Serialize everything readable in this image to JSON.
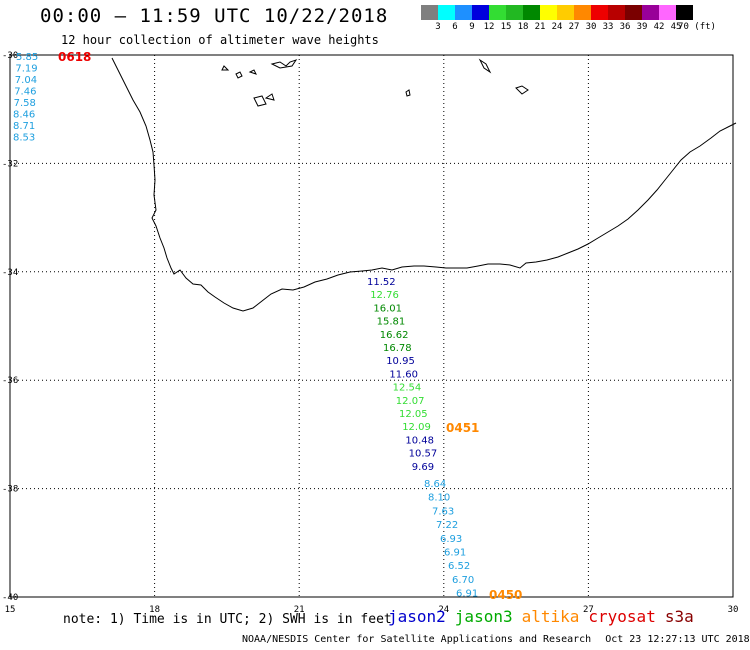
{
  "title": "00:00 – 11:59 UTC 10/22/2018",
  "subtitle": "12 hour collection of altimeter wave heights",
  "colorbar": {
    "colors": [
      "#7f7f7f",
      "#00ffff",
      "#1e90ff",
      "#0000dd",
      "#33dd33",
      "#22b822",
      "#008800",
      "#ffff00",
      "#ffcc00",
      "#ff8800",
      "#ee0000",
      "#b80000",
      "#7a0000",
      "#990099",
      "#ff66ff",
      "#000000"
    ],
    "ticks": [
      "3",
      "6",
      "9",
      "12",
      "15",
      "18",
      "21",
      "24",
      "27",
      "30",
      "33",
      "36",
      "39",
      "42",
      "45",
      "70 (ft)"
    ]
  },
  "axes": {
    "x_ticks": [
      "15",
      "18",
      "21",
      "24",
      "27",
      "30"
    ],
    "y_ticks": [
      "-30",
      "-32",
      "-34",
      "-36",
      "-38",
      "-40"
    ]
  },
  "passes": [
    {
      "time": "0618",
      "time_color": "#ee0000",
      "color": "#1e9fdf",
      "values": [
        "5.85",
        "7.19",
        "7.04",
        "7.46",
        "7.58",
        "8.46",
        "8.71",
        "8.53"
      ]
    },
    {
      "time": "0451",
      "time_color": "#ff8800",
      "values": [
        {
          "v": "11.52",
          "c": "#000099"
        },
        {
          "v": "12.76",
          "c": "#33dd33"
        },
        {
          "v": "16.01",
          "c": "#008800"
        },
        {
          "v": "15.81",
          "c": "#008800"
        },
        {
          "v": "16.62",
          "c": "#008800"
        },
        {
          "v": "16.78",
          "c": "#008800"
        },
        {
          "v": "10.95",
          "c": "#000099"
        },
        {
          "v": "11.60",
          "c": "#000099"
        },
        {
          "v": "12.54",
          "c": "#33dd33"
        },
        {
          "v": "12.07",
          "c": "#33dd33"
        },
        {
          "v": "12.05",
          "c": "#33dd33"
        },
        {
          "v": "12.09",
          "c": "#33dd33"
        },
        {
          "v": "10.48",
          "c": "#000099"
        },
        {
          "v": "10.57",
          "c": "#000099"
        },
        {
          "v": "9.69",
          "c": "#000099"
        }
      ]
    },
    {
      "time": "0450",
      "time_color": "#ff8800",
      "values": [
        {
          "v": "8.64",
          "c": "#1e9fdf"
        },
        {
          "v": "8.10",
          "c": "#1e9fdf"
        },
        {
          "v": "7.63",
          "c": "#1e9fdf"
        },
        {
          "v": "7.22",
          "c": "#1e9fdf"
        },
        {
          "v": "6.93",
          "c": "#1e9fdf"
        },
        {
          "v": "6.91",
          "c": "#1e9fdf"
        },
        {
          "v": "6.52",
          "c": "#1e9fdf"
        },
        {
          "v": "6.70",
          "c": "#1e9fdf"
        },
        {
          "v": "6.91",
          "c": "#1e9fdf"
        }
      ]
    }
  ],
  "note": "note: 1) Time is in UTC; 2) SWH is in feet",
  "legend": [
    {
      "label": "jason2",
      "color": "#0000cc"
    },
    {
      "label": "jason3",
      "color": "#00aa00"
    },
    {
      "label": "altika",
      "color": "#ff8800"
    },
    {
      "label": "cryosat",
      "color": "#dd0000"
    },
    {
      "label": "s3a",
      "color": "#880000"
    }
  ],
  "footer": {
    "credit": "NOAA/NESDIS Center for Satellite Applications and Research",
    "timestamp": "Oct 23 12:27:13 UTC 2018"
  }
}
